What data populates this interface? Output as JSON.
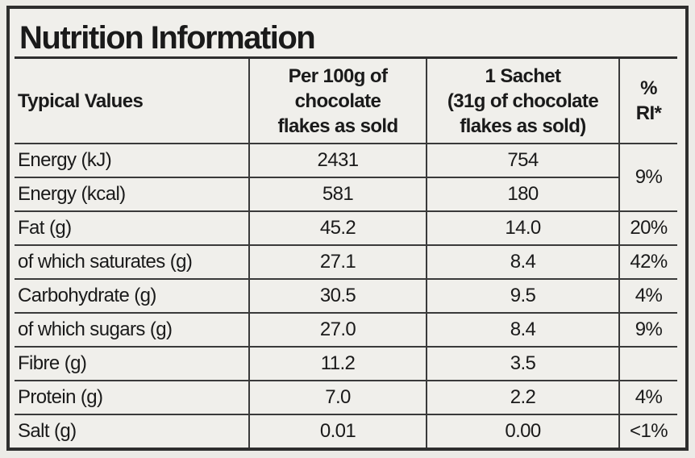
{
  "title": "Nutrition Information",
  "table": {
    "header": {
      "label": "Typical Values",
      "per_100g": [
        "Per 100g of",
        "chocolate",
        "flakes as sold"
      ],
      "per_sachet": [
        "1 Sachet",
        "(31g of chocolate",
        "flakes as sold)"
      ],
      "ri": [
        "%",
        "RI*"
      ]
    },
    "rows": [
      {
        "items": [
          [
            "Energy (kJ)",
            "2431",
            "754"
          ],
          [
            "Energy (kcal)",
            "581",
            "180"
          ]
        ],
        "ri": "9%"
      },
      {
        "items": [
          [
            "Fat (g)",
            "45.2",
            "14.0"
          ]
        ],
        "ri": "20%"
      },
      {
        "items": [
          [
            "of which saturates (g)",
            "27.1",
            "8.4"
          ]
        ],
        "ri": "42%"
      },
      {
        "items": [
          [
            "Carbohydrate (g)",
            "30.5",
            "9.5"
          ]
        ],
        "ri": "4%"
      },
      {
        "items": [
          [
            "of which sugars (g)",
            "27.0",
            "8.4"
          ]
        ],
        "ri": "9%"
      },
      {
        "items": [
          [
            "Fibre (g)",
            "11.2",
            "3.5"
          ]
        ]
      },
      {
        "items": [
          [
            "Protein (g)",
            "7.0",
            "2.2"
          ]
        ],
        "ri": "4%"
      },
      {
        "items": [
          [
            "Salt (g)",
            "0.01",
            "0.00"
          ]
        ],
        "ri": "<1%"
      }
    ]
  }
}
